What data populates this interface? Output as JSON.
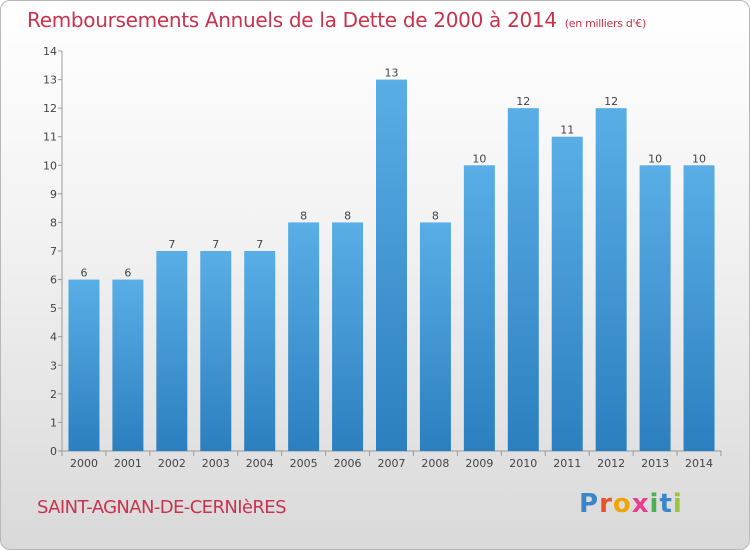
{
  "title": "Remboursements Annuels de la Dette de 2000 à 2014",
  "unit_note": "(en milliers d'€)",
  "place_name": "SAINT-AGNAN-DE-CERNIèRES",
  "brand": {
    "letters": [
      "P",
      "r",
      "o",
      "x",
      "i",
      "t",
      "i"
    ],
    "colors": [
      "#3a86c8",
      "#e8542a",
      "#f0a500",
      "#e83e8c",
      "#4caf50",
      "#3a86c8",
      "#9bc53d"
    ]
  },
  "chart_data": {
    "type": "bar",
    "title": "Remboursements Annuels de la Dette de 2000 à 2014",
    "xlabel": "",
    "ylabel": "en milliers d'€",
    "categories": [
      "2000",
      "2001",
      "2002",
      "2003",
      "2004",
      "2005",
      "2006",
      "2007",
      "2008",
      "2009",
      "2010",
      "2011",
      "2012",
      "2013",
      "2014"
    ],
    "values": [
      6,
      6,
      7,
      7,
      7,
      8,
      8,
      13,
      8,
      10,
      12,
      11,
      12,
      10,
      10
    ],
    "ylim": [
      0,
      14
    ],
    "yticks": [
      0,
      1,
      2,
      3,
      4,
      5,
      6,
      7,
      8,
      9,
      10,
      11,
      12,
      13,
      14
    ],
    "grid": false,
    "bar_color_top": "#5aaee6",
    "bar_color_bottom": "#2c7fbf"
  }
}
